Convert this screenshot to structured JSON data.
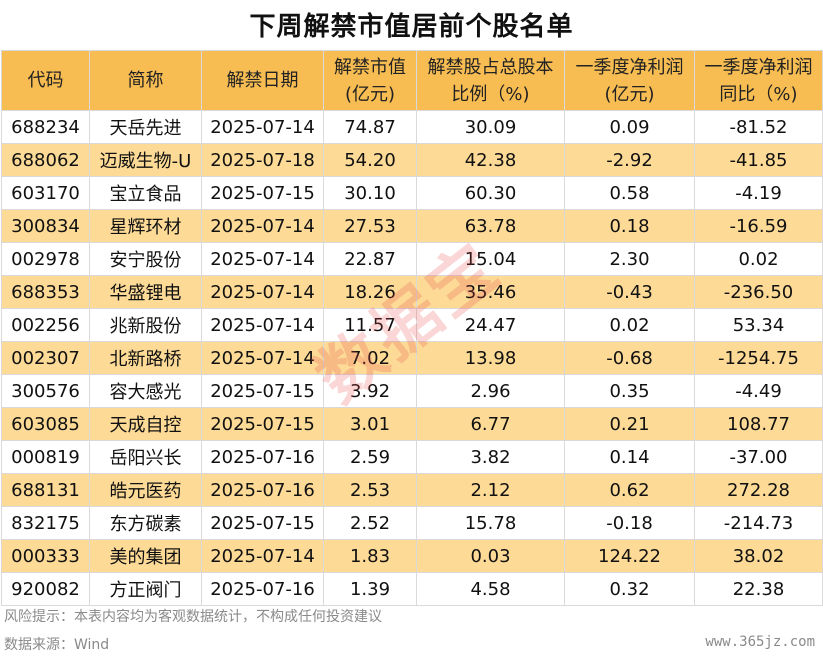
{
  "title": "下周解禁市值居前个股名单",
  "headers": [
    [
      "代码"
    ],
    [
      "简称"
    ],
    [
      "解禁日期"
    ],
    [
      "解禁市值",
      "(亿元)"
    ],
    [
      "解禁股占总股本",
      "比例（%)"
    ],
    [
      "一季度净利润",
      "(亿元)"
    ],
    [
      "一季度净利润",
      "同比（%)"
    ]
  ],
  "rows": [
    [
      "688234",
      "天岳先进",
      "2025-07-14",
      "74.87",
      "30.09",
      "0.09",
      "-81.52"
    ],
    [
      "688062",
      "迈威生物-U",
      "2025-07-18",
      "54.20",
      "42.38",
      "-2.92",
      "-41.85"
    ],
    [
      "603170",
      "宝立食品",
      "2025-07-15",
      "30.10",
      "60.30",
      "0.58",
      "-4.19"
    ],
    [
      "300834",
      "星辉环材",
      "2025-07-14",
      "27.53",
      "63.78",
      "0.18",
      "-16.59"
    ],
    [
      "002978",
      "安宁股份",
      "2025-07-14",
      "22.87",
      "15.04",
      "2.30",
      "0.02"
    ],
    [
      "688353",
      "华盛锂电",
      "2025-07-14",
      "18.26",
      "35.46",
      "-0.43",
      "-236.50"
    ],
    [
      "002256",
      "兆新股份",
      "2025-07-14",
      "11.57",
      "24.47",
      "0.02",
      "53.34"
    ],
    [
      "002307",
      "北新路桥",
      "2025-07-14",
      "7.02",
      "13.98",
      "-0.68",
      "-1254.75"
    ],
    [
      "300576",
      "容大感光",
      "2025-07-15",
      "3.92",
      "2.96",
      "0.35",
      "-4.49"
    ],
    [
      "603085",
      "天成自控",
      "2025-07-15",
      "3.01",
      "6.77",
      "0.21",
      "108.77"
    ],
    [
      "000819",
      "岳阳兴长",
      "2025-07-16",
      "2.59",
      "3.82",
      "0.14",
      "-37.00"
    ],
    [
      "688131",
      "皓元医药",
      "2025-07-16",
      "2.53",
      "2.12",
      "0.62",
      "272.28"
    ],
    [
      "832175",
      "东方碳素",
      "2025-07-15",
      "2.52",
      "15.78",
      "-0.18",
      "-214.73"
    ],
    [
      "000333",
      "美的集团",
      "2025-07-14",
      "1.83",
      "0.03",
      "124.22",
      "38.02"
    ],
    [
      "920082",
      "方正阀门",
      "2025-07-16",
      "1.39",
      "4.58",
      "0.32",
      "22.38"
    ]
  ],
  "watermark": "数据宝",
  "footer": {
    "risk": "风险提示：本表内容均为客观数据统计，不构成任何投资建议",
    "source": "数据来源：Wind",
    "site": "www.365jz.com"
  },
  "colors": {
    "header_bg": "#f7bd52",
    "stripe_bg": "#fddb97",
    "watermark": "#e64646"
  }
}
